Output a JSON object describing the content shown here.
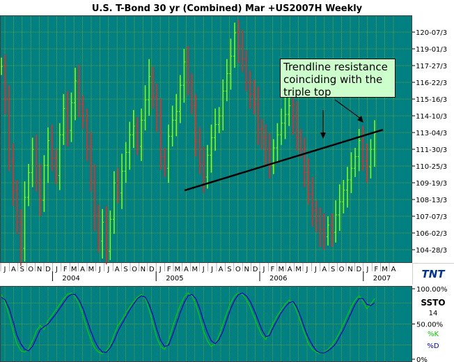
{
  "chart_data": [
    {
      "type": "candlestick",
      "title": "U.S. T-Bond 30 yr (Combined) Mar +US2007H Weekly",
      "y_ticks": [
        "120-07/3",
        "119-01/3",
        "117-27/3",
        "116-22/3",
        "115-16/3",
        "114-10/3",
        "113-04/3",
        "111-30/3",
        "110-25/3",
        "109-19/3",
        "108-13/3",
        "107-07/3",
        "106-02/3",
        "104-28/3"
      ],
      "ylim": [
        104.0,
        121.0
      ],
      "month_labels": [
        "J",
        "A",
        "S",
        "O",
        "N",
        "D",
        "J",
        "F",
        "M",
        "A",
        "M",
        "J",
        "J",
        "A",
        "S",
        "O",
        "N",
        "D",
        "J",
        "F",
        "M",
        "A",
        "M",
        "J",
        "J",
        "A",
        "S",
        "O",
        "N",
        "D",
        "J",
        "F",
        "M",
        "A",
        "M",
        "J",
        "J",
        "A",
        "S",
        "O",
        "N",
        "D",
        "J",
        "F",
        "M",
        "A"
      ],
      "year_labels": [
        {
          "label": "2004",
          "after_month_index": 6
        },
        {
          "label": "2005",
          "after_month_index": 18
        },
        {
          "label": "2006",
          "after_month_index": 30
        },
        {
          "label": "2007",
          "after_month_index": 42
        }
      ],
      "series": [
        {
          "name": "price",
          "values": [
            117.5,
            115.2,
            111.0,
            109.0,
            106.8,
            105.0,
            108.5,
            110.2,
            111.8,
            109.6,
            108.3,
            110.7,
            112.4,
            111.2,
            110.0,
            112.8,
            114.6,
            113.1,
            115.0,
            116.5,
            114.9,
            113.8,
            112.0,
            109.6,
            107.3,
            105.5,
            106.8,
            104.8,
            107.0,
            109.5,
            108.8,
            110.3,
            111.6,
            112.8,
            113.4,
            112.0,
            113.8,
            115.2,
            116.8,
            115.4,
            114.2,
            111.3,
            110.5,
            112.7,
            113.8,
            114.4,
            116.2,
            117.8,
            116.4,
            114.8,
            112.3,
            110.8,
            109.9,
            111.4,
            112.6,
            113.5,
            114.1,
            115.8,
            117.0,
            118.2,
            119.8,
            118.9,
            118.0,
            116.4,
            115.6,
            114.9,
            113.2,
            112.6,
            111.8,
            110.7,
            111.9,
            112.8,
            113.6,
            114.2,
            114.8,
            114.0,
            112.6,
            111.8,
            110.2,
            108.7,
            107.6,
            106.9,
            106.3,
            105.8,
            106.6,
            106.1,
            107.3,
            108.2,
            109.0,
            109.7,
            110.5,
            111.3,
            112.4,
            111.0,
            110.6,
            111.8,
            112.9
          ]
        }
      ],
      "annotations": [
        {
          "text": "Trendline resistance coinciding with the triple top"
        }
      ],
      "logo": "TNT"
    },
    {
      "type": "line",
      "title": "SSTO",
      "period": "14",
      "y_ticks": [
        "100.00%",
        "50.00%",
        "0%"
      ],
      "ylim": [
        0,
        100
      ],
      "series": [
        {
          "name": "%K",
          "color": "#00cc00",
          "values": [
            92,
            80,
            62,
            40,
            22,
            12,
            10,
            15,
            26,
            40,
            48,
            42,
            55,
            62,
            70,
            78,
            86,
            92,
            94,
            88,
            78,
            62,
            44,
            28,
            16,
            10,
            8,
            12,
            20,
            35,
            48,
            56,
            66,
            74,
            82,
            88,
            92,
            86,
            70,
            50,
            30,
            18,
            14,
            26,
            45,
            62,
            76,
            88,
            94,
            90,
            78,
            60,
            40,
            26,
            18,
            22,
            34,
            50,
            66,
            80,
            90,
            94,
            92,
            85,
            74,
            60,
            46,
            34,
            28,
            40,
            52,
            62,
            70,
            78,
            84,
            80,
            68,
            52,
            36,
            22,
            14,
            10,
            8,
            10,
            14,
            20,
            28,
            38,
            50,
            62,
            74,
            84,
            90,
            82,
            72,
            78,
            86
          ]
        },
        {
          "name": "%D",
          "color": "#0000cc",
          "values": [
            88,
            84,
            72,
            54,
            34,
            22,
            14,
            12,
            18,
            30,
            42,
            46,
            50,
            57,
            64,
            72,
            80,
            88,
            92,
            92,
            84,
            72,
            56,
            40,
            26,
            16,
            10,
            10,
            16,
            26,
            40,
            50,
            60,
            70,
            78,
            86,
            90,
            88,
            78,
            62,
            42,
            26,
            18,
            20,
            34,
            50,
            66,
            80,
            90,
            92,
            86,
            72,
            54,
            38,
            26,
            22,
            28,
            40,
            56,
            72,
            84,
            92,
            94,
            90,
            82,
            70,
            56,
            42,
            32,
            34,
            46,
            56,
            66,
            74,
            80,
            82,
            74,
            60,
            44,
            30,
            20,
            12,
            9,
            9,
            12,
            16,
            22,
            32,
            42,
            54,
            66,
            78,
            86,
            86,
            78,
            76,
            80
          ]
        }
      ]
    }
  ]
}
